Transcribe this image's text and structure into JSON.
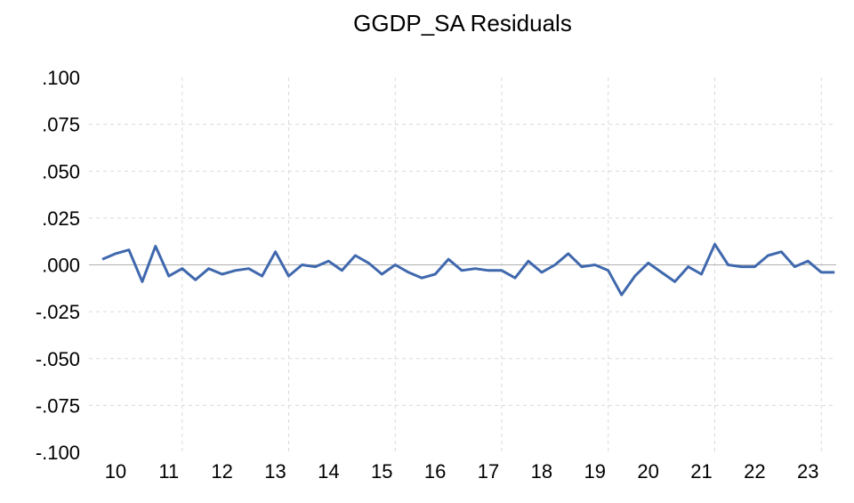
{
  "chart_data": {
    "type": "line",
    "title": "GGDP_SA Residuals",
    "xlabel": "",
    "ylabel": "",
    "ylim": [
      -0.1,
      0.1
    ],
    "xlim": [
      2010.0,
      2023.75
    ],
    "y_tick_labels": [
      ".100",
      ".075",
      ".050",
      ".025",
      ".000",
      "-.025",
      "-.050",
      "-.075",
      "-.100"
    ],
    "y_tick_values": [
      0.1,
      0.075,
      0.05,
      0.025,
      0.0,
      -0.025,
      -0.05,
      -0.075,
      -0.1
    ],
    "x_tick_labels": [
      "10",
      "11",
      "12",
      "13",
      "14",
      "15",
      "16",
      "17",
      "18",
      "19",
      "20",
      "21",
      "22",
      "23"
    ],
    "x_tick_values": [
      2010,
      2011,
      2012,
      2013,
      2014,
      2015,
      2016,
      2017,
      2018,
      2019,
      2020,
      2021,
      2022,
      2023
    ],
    "grid": true,
    "series": [
      {
        "color": "#3f68ad",
        "x": [
          2010.0,
          2010.25,
          2010.5,
          2010.75,
          2011.0,
          2011.25,
          2011.5,
          2011.75,
          2012.0,
          2012.25,
          2012.5,
          2012.75,
          2013.0,
          2013.25,
          2013.5,
          2013.75,
          2014.0,
          2014.25,
          2014.5,
          2014.75,
          2015.0,
          2015.25,
          2015.5,
          2015.75,
          2016.0,
          2016.25,
          2016.5,
          2016.75,
          2017.0,
          2017.25,
          2017.5,
          2017.75,
          2018.0,
          2018.25,
          2018.5,
          2018.75,
          2019.0,
          2019.25,
          2019.5,
          2019.75,
          2020.0,
          2020.25,
          2020.5,
          2020.75,
          2021.0,
          2021.25,
          2021.5,
          2021.75,
          2022.0,
          2022.25,
          2022.5,
          2022.75,
          2023.0,
          2023.25,
          2023.5,
          2023.75
        ],
        "values": [
          0.003,
          0.006,
          0.008,
          -0.009,
          0.01,
          -0.006,
          -0.002,
          -0.008,
          -0.002,
          -0.005,
          -0.003,
          -0.002,
          -0.006,
          0.007,
          -0.006,
          0.0,
          -0.001,
          0.002,
          -0.003,
          0.005,
          0.001,
          -0.005,
          0.0,
          -0.004,
          -0.007,
          -0.005,
          0.003,
          -0.003,
          -0.002,
          -0.003,
          -0.003,
          -0.007,
          0.002,
          -0.004,
          0.0,
          0.006,
          -0.001,
          0.0,
          -0.003,
          -0.016,
          -0.006,
          0.001,
          -0.004,
          -0.009,
          -0.001,
          -0.005,
          0.011,
          0.0,
          -0.001,
          -0.001,
          0.005,
          0.007,
          -0.001,
          0.002,
          -0.004,
          -0.004
        ]
      }
    ]
  }
}
